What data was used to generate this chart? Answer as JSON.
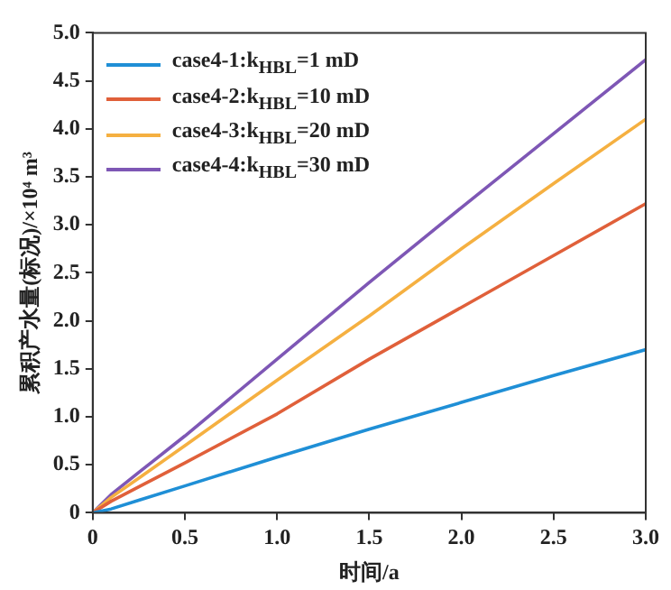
{
  "chart_data": {
    "type": "line",
    "xlabel": "时间/a",
    "ylabel": "累积产水量(标况)/×10⁴ m³",
    "xlim": [
      0,
      3
    ],
    "xticks": [
      0,
      0.5,
      {
        "value": 1,
        "label": "1.0"
      },
      1.5,
      {
        "value": 2,
        "label": "2.0"
      },
      2.5,
      {
        "value": 3,
        "label": "3.0"
      }
    ],
    "ylim": [
      0,
      5
    ],
    "yticks": [
      0,
      0.5,
      {
        "value": 1,
        "label": "1.0"
      },
      1.5,
      {
        "value": 2,
        "label": "2.0"
      },
      2.5,
      {
        "value": 3,
        "label": "3.0"
      },
      3.5,
      {
        "value": 4,
        "label": "4.0"
      },
      4.5,
      {
        "value": 5,
        "label": "5.0"
      }
    ],
    "x": [
      0,
      0.1,
      0.25,
      0.5,
      1,
      1.5,
      2,
      2.5,
      3
    ],
    "series": [
      {
        "name": "case4-1:k$_{HBL}$=1 mD",
        "color": "#1f8fd6",
        "values": [
          0,
          0.04,
          0.13,
          0.28,
          0.58,
          0.87,
          1.15,
          1.43,
          1.7
        ]
      },
      {
        "name": "case4-2:k$_{HBL}$=10 mD",
        "color": "#e0603a",
        "values": [
          0,
          0.12,
          0.27,
          0.52,
          1.03,
          1.6,
          2.14,
          2.68,
          3.22
        ]
      },
      {
        "name": "case4-3:k$_{HBL}$=20 mD",
        "color": "#f5b041",
        "values": [
          0,
          0.16,
          0.36,
          0.7,
          1.38,
          2.05,
          2.75,
          3.43,
          4.1
        ]
      },
      {
        "name": "case4-4:k$_{HBL}$=30 mD",
        "color": "#7e57b5",
        "values": [
          0,
          0.19,
          0.42,
          0.8,
          1.6,
          2.4,
          3.18,
          3.95,
          4.72
        ]
      }
    ],
    "legend": "top left",
    "grid": false,
    "marker": "none",
    "line_style": "solid"
  }
}
